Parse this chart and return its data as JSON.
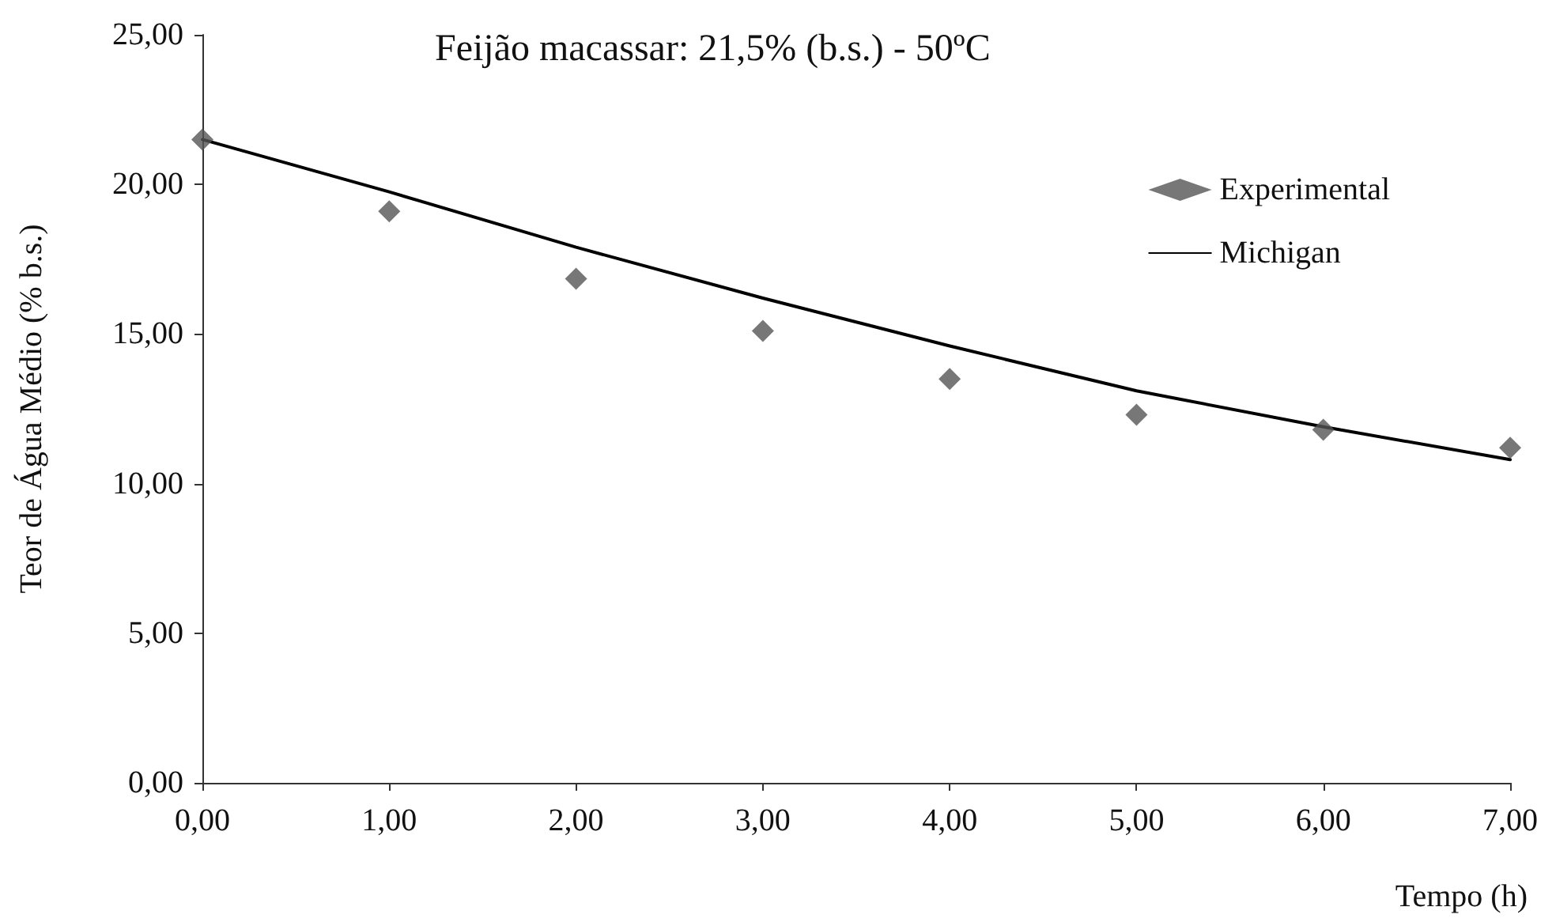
{
  "chart_data": {
    "type": "scatter",
    "title": "Feijão macassar: 21,5% (b.s.) - 50ºC",
    "xlabel": "Tempo (h)",
    "ylabel": "Teor de Água Médio (% b.s.)",
    "xlim": [
      0,
      7
    ],
    "xticks": [
      {
        "value": 0,
        "label": "0,00"
      },
      {
        "value": 1,
        "label": "1,00"
      },
      {
        "value": 2,
        "label": "2,00"
      },
      {
        "value": 3,
        "label": "3,00"
      },
      {
        "value": 4,
        "label": "4,00"
      },
      {
        "value": 5,
        "label": "5,00"
      },
      {
        "value": 6,
        "label": "6,00"
      },
      {
        "value": 7,
        "label": "7,00"
      }
    ],
    "ylim": [
      0,
      25
    ],
    "yticks": [
      {
        "value": 0,
        "label": "0,00"
      },
      {
        "value": 5,
        "label": "5,00"
      },
      {
        "value": 10,
        "label": "10,00"
      },
      {
        "value": 15,
        "label": "15,00"
      },
      {
        "value": 20,
        "label": "20,00"
      },
      {
        "value": 25,
        "label": "25,00"
      }
    ],
    "x": [
      0,
      1,
      2,
      3,
      4,
      5,
      6,
      7
    ],
    "series": [
      {
        "name": "Experimental",
        "marker": "diamond",
        "color": "#555555",
        "values": [
          21.5,
          19.1,
          16.85,
          15.1,
          13.5,
          12.3,
          11.8,
          11.2
        ]
      },
      {
        "name": "Michigan",
        "type": "line",
        "marker": "none",
        "line_style": "solid",
        "color": "#000000",
        "values": [
          21.5,
          19.75,
          17.9,
          16.2,
          14.6,
          13.1,
          11.9,
          10.8
        ]
      }
    ],
    "grid": false,
    "legend": "top right"
  }
}
